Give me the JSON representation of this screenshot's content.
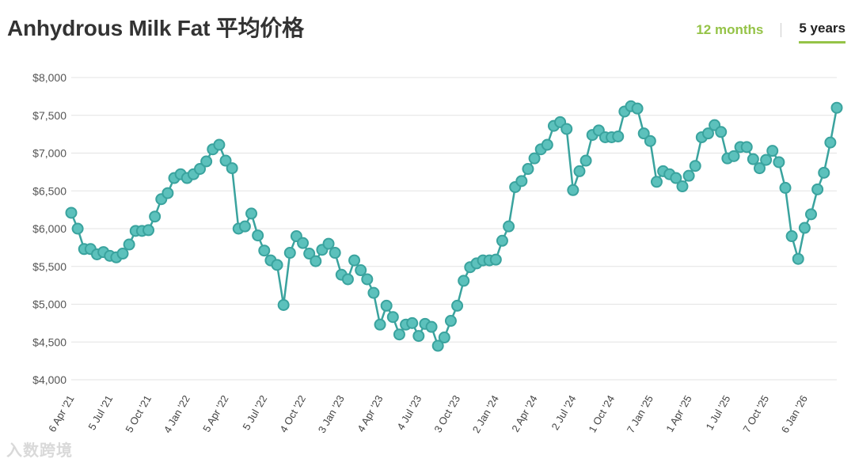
{
  "title": "Anhydrous Milk Fat 平均价格",
  "range_tabs": [
    {
      "label": "12 months",
      "active": false
    },
    {
      "label": "5 years",
      "active": true
    }
  ],
  "watermark": "入数跨境",
  "colors": {
    "line": "#3aa39e",
    "point_fill": "#5cc1bc",
    "active_tab": "#95c347",
    "grid": "#e3e3e3"
  },
  "chart_data": {
    "type": "line",
    "title": "Anhydrous Milk Fat 平均价格",
    "ylim": [
      4000,
      8000
    ],
    "yticks": [
      4000,
      4500,
      5000,
      5500,
      6000,
      6500,
      7000,
      7500,
      8000
    ],
    "ytick_labels": [
      "$4,000",
      "$4,500",
      "$5,000",
      "$5,500",
      "$6,000",
      "$6,500",
      "$7,000",
      "$7,500",
      "$8,000"
    ],
    "xticks": [
      {
        "label": "6 Apr '21",
        "index": 0
      },
      {
        "label": "5 Jul '21",
        "index": 6
      },
      {
        "label": "5 Oct '21",
        "index": 12
      },
      {
        "label": "4 Jan '22",
        "index": 18
      },
      {
        "label": "5 Apr '22",
        "index": 24
      },
      {
        "label": "5 Jul '22",
        "index": 30
      },
      {
        "label": "4 Oct '22",
        "index": 36
      },
      {
        "label": "3 Jan '23",
        "index": 42
      },
      {
        "label": "4 Apr '23",
        "index": 48
      },
      {
        "label": "4 Jul '23",
        "index": 54
      },
      {
        "label": "3 Oct '23",
        "index": 60
      },
      {
        "label": "2 Jan '24",
        "index": 66
      },
      {
        "label": "2 Apr '24",
        "index": 72
      },
      {
        "label": "2 Jul '24",
        "index": 78
      },
      {
        "label": "1 Oct '24",
        "index": 84
      },
      {
        "label": "7 Jan '25",
        "index": 90
      },
      {
        "label": "1 Apr '25",
        "index": 96
      },
      {
        "label": "1 Jul '25",
        "index": 102
      },
      {
        "label": "7 Oct '25",
        "index": 108
      },
      {
        "label": "6 Jan '26",
        "index": 114
      }
    ],
    "grid": true,
    "legend": "none",
    "series": [
      {
        "values": [
          6210,
          6000,
          5730,
          5730,
          5660,
          5690,
          5640,
          5620,
          5670,
          5790,
          5970,
          5970,
          5980,
          6160,
          6390,
          6470,
          6670,
          6720,
          6670,
          6720,
          6790,
          6890,
          7050,
          7110,
          6900,
          6800,
          6000,
          6030,
          6200,
          5910,
          5710,
          5580,
          5520,
          4990,
          5680,
          5900,
          5810,
          5670,
          5570,
          5720,
          5800,
          5680,
          5390,
          5330,
          5580,
          5450,
          5330,
          5150,
          4730,
          4980,
          4830,
          4600,
          4730,
          4750,
          4580,
          4740,
          4700,
          4450,
          4560,
          4780,
          4980,
          5310,
          5490,
          5540,
          5580,
          5580,
          5590,
          5840,
          6030,
          6550,
          6630,
          6790,
          6930,
          7050,
          7110,
          7360,
          7410,
          7320,
          6510,
          6760,
          6900,
          7240,
          7300,
          7210,
          7210,
          7220,
          7550,
          7620,
          7590,
          7260,
          7160,
          6620,
          6760,
          6720,
          6670,
          6560,
          6700,
          6830,
          7210,
          7260,
          7370,
          7280,
          6930,
          6960,
          7080,
          7080,
          6920,
          6800,
          6910,
          7030,
          6880,
          6540,
          5900,
          5600,
          6010,
          6190,
          6520,
          6740,
          7140,
          7600
        ]
      }
    ]
  }
}
